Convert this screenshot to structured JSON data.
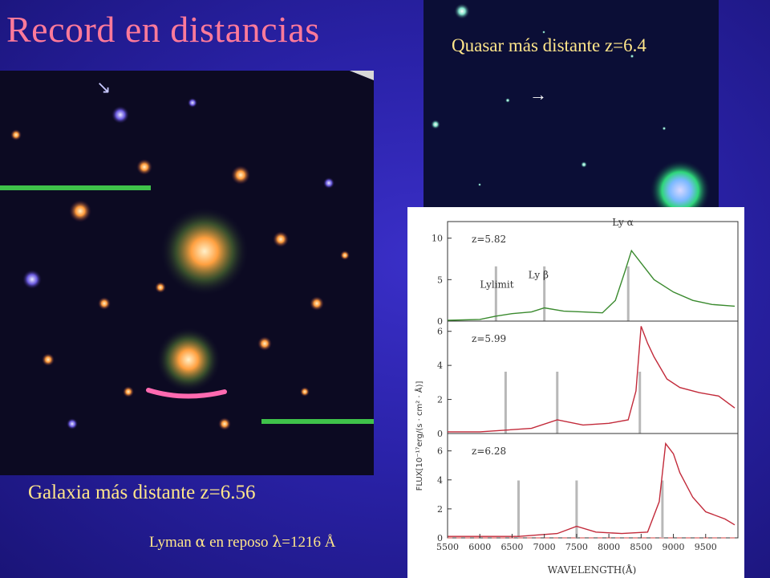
{
  "title": "Record en distancias",
  "quasar_caption": "Quasar más distante z=6.4",
  "quasar_arrow": "→",
  "galaxy_caption": "Galaxia más distante z=6.56",
  "lyman_note": {
    "prefix": "Lyman ",
    "alpha": "α",
    "middle": " en reposo ",
    "lambda": "λ",
    "suffix": "=1216 Å"
  },
  "spectra": {
    "ylabel": "FLUX[10⁻¹⁷erg/(s · cm² · Å)]",
    "xlabel": "WAVELENGTH(Å)",
    "x_ticks": [
      "5500",
      "6000",
      "6500",
      "7000",
      "7500",
      "8000",
      "8500",
      "9000",
      "9500"
    ],
    "xlim": [
      5500,
      10000
    ],
    "panels": [
      {
        "z_label": "z=5.82",
        "color": "#3a8a2e",
        "y_ticks": [
          "10",
          "5",
          "0"
        ],
        "ylim": [
          0,
          12
        ],
        "annotations": [
          {
            "text": "Ly α",
            "x": 8300,
            "y": 11.5
          },
          {
            "text": "Ly β",
            "x": 7000,
            "y": 5.2
          },
          {
            "text": "Lylimit",
            "x": 6250,
            "y": 4.0
          }
        ],
        "markers": [
          6250,
          7000,
          8300
        ],
        "points": [
          [
            5500,
            0.1
          ],
          [
            6000,
            0.2
          ],
          [
            6250,
            0.6
          ],
          [
            6500,
            0.9
          ],
          [
            6800,
            1.1
          ],
          [
            7000,
            1.6
          ],
          [
            7300,
            1.2
          ],
          [
            7600,
            1.1
          ],
          [
            7900,
            1.0
          ],
          [
            8100,
            2.5
          ],
          [
            8250,
            6
          ],
          [
            8350,
            8.5
          ],
          [
            8500,
            7
          ],
          [
            8700,
            5
          ],
          [
            9000,
            3.5
          ],
          [
            9300,
            2.5
          ],
          [
            9600,
            2.0
          ],
          [
            9950,
            1.8
          ]
        ]
      },
      {
        "z_label": "z=5.99",
        "color": "#c22a3a",
        "y_ticks": [
          "6",
          "4",
          "2",
          "0"
        ],
        "ylim": [
          0,
          6.6
        ],
        "annotations": [],
        "markers": [
          6400,
          7200,
          8480
        ],
        "points": [
          [
            5500,
            0.1
          ],
          [
            6000,
            0.1
          ],
          [
            6400,
            0.2
          ],
          [
            6800,
            0.3
          ],
          [
            7200,
            0.8
          ],
          [
            7600,
            0.5
          ],
          [
            8000,
            0.6
          ],
          [
            8300,
            0.8
          ],
          [
            8420,
            2.5
          ],
          [
            8500,
            6.3
          ],
          [
            8600,
            5.3
          ],
          [
            8700,
            4.5
          ],
          [
            8900,
            3.2
          ],
          [
            9100,
            2.7
          ],
          [
            9400,
            2.4
          ],
          [
            9700,
            2.2
          ],
          [
            9950,
            1.5
          ]
        ]
      },
      {
        "z_label": "z=6.28",
        "color": "#c22a3a",
        "y_ticks": [
          "6",
          "4",
          "2",
          "0"
        ],
        "ylim": [
          0,
          7.2
        ],
        "annotations": [],
        "markers": [
          6600,
          7500,
          8830
        ],
        "points": [
          [
            5500,
            0.1
          ],
          [
            6000,
            0.1
          ],
          [
            6600,
            0.1
          ],
          [
            7200,
            0.3
          ],
          [
            7500,
            0.8
          ],
          [
            7800,
            0.4
          ],
          [
            8200,
            0.3
          ],
          [
            8600,
            0.4
          ],
          [
            8780,
            2.5
          ],
          [
            8880,
            6.5
          ],
          [
            9000,
            5.8
          ],
          [
            9100,
            4.5
          ],
          [
            9300,
            2.8
          ],
          [
            9500,
            1.8
          ],
          [
            9800,
            1.3
          ],
          [
            9950,
            0.9
          ]
        ]
      }
    ]
  }
}
